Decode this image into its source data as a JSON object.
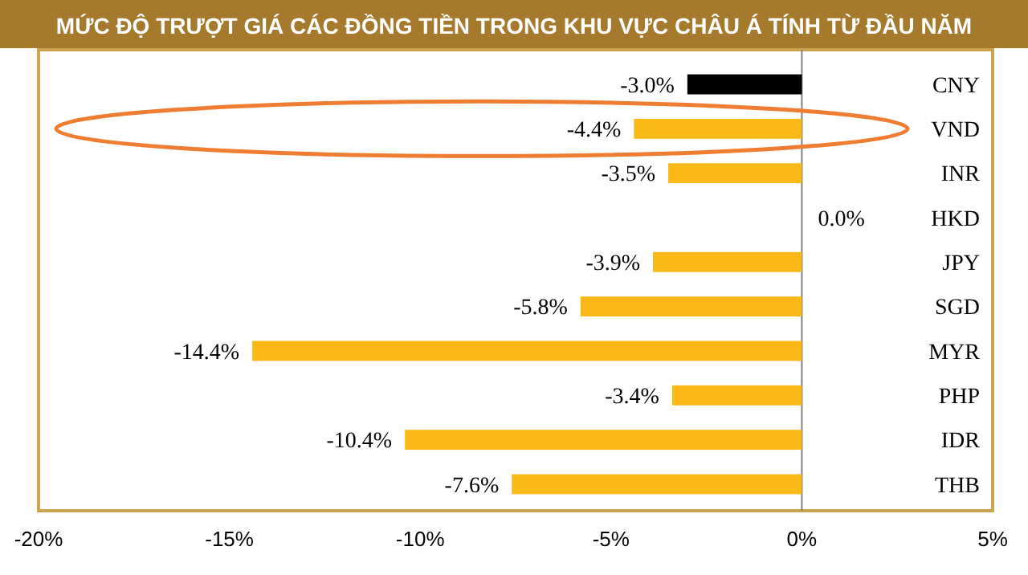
{
  "chart_data": {
    "type": "bar",
    "orientation": "horizontal",
    "title": "MỨC ĐỘ TRƯỢT GIÁ CÁC ĐỒNG TIỀN TRONG KHU VỰC CHÂU Á TÍNH TỪ ĐẦU NĂM",
    "categories": [
      "CNY",
      "VND",
      "INR",
      "HKD",
      "JPY",
      "SGD",
      "MYR",
      "PHP",
      "IDR",
      "THB"
    ],
    "values": [
      -3.0,
      -4.4,
      -3.5,
      0.0,
      -3.9,
      -5.8,
      -14.4,
      -3.4,
      -10.4,
      -7.6
    ],
    "colors": [
      "#000000",
      "#fbb917",
      "#fbb917",
      "#fbb917",
      "#fbb917",
      "#fbb917",
      "#fbb917",
      "#fbb917",
      "#fbb917",
      "#fbb917"
    ],
    "value_labels": [
      "-3.0%",
      "-4.4%",
      "-3.5%",
      "0.0%",
      "-3.9%",
      "-5.8%",
      "-14.4%",
      "-3.4%",
      "-10.4%",
      "-7.6%"
    ],
    "xlim": [
      -20,
      5
    ],
    "xticks": [
      {
        "value": -20,
        "label": "-20%"
      },
      {
        "value": -15,
        "label": "-15%"
      },
      {
        "value": -10,
        "label": "-10%"
      },
      {
        "value": -5,
        "label": "-5%"
      },
      {
        "value": 0,
        "label": "0%"
      },
      {
        "value": 5,
        "label": "5%"
      }
    ],
    "ref_lines": [
      {
        "axis": "x",
        "value": 0,
        "color": "#808080"
      }
    ],
    "grid": false
  }
}
